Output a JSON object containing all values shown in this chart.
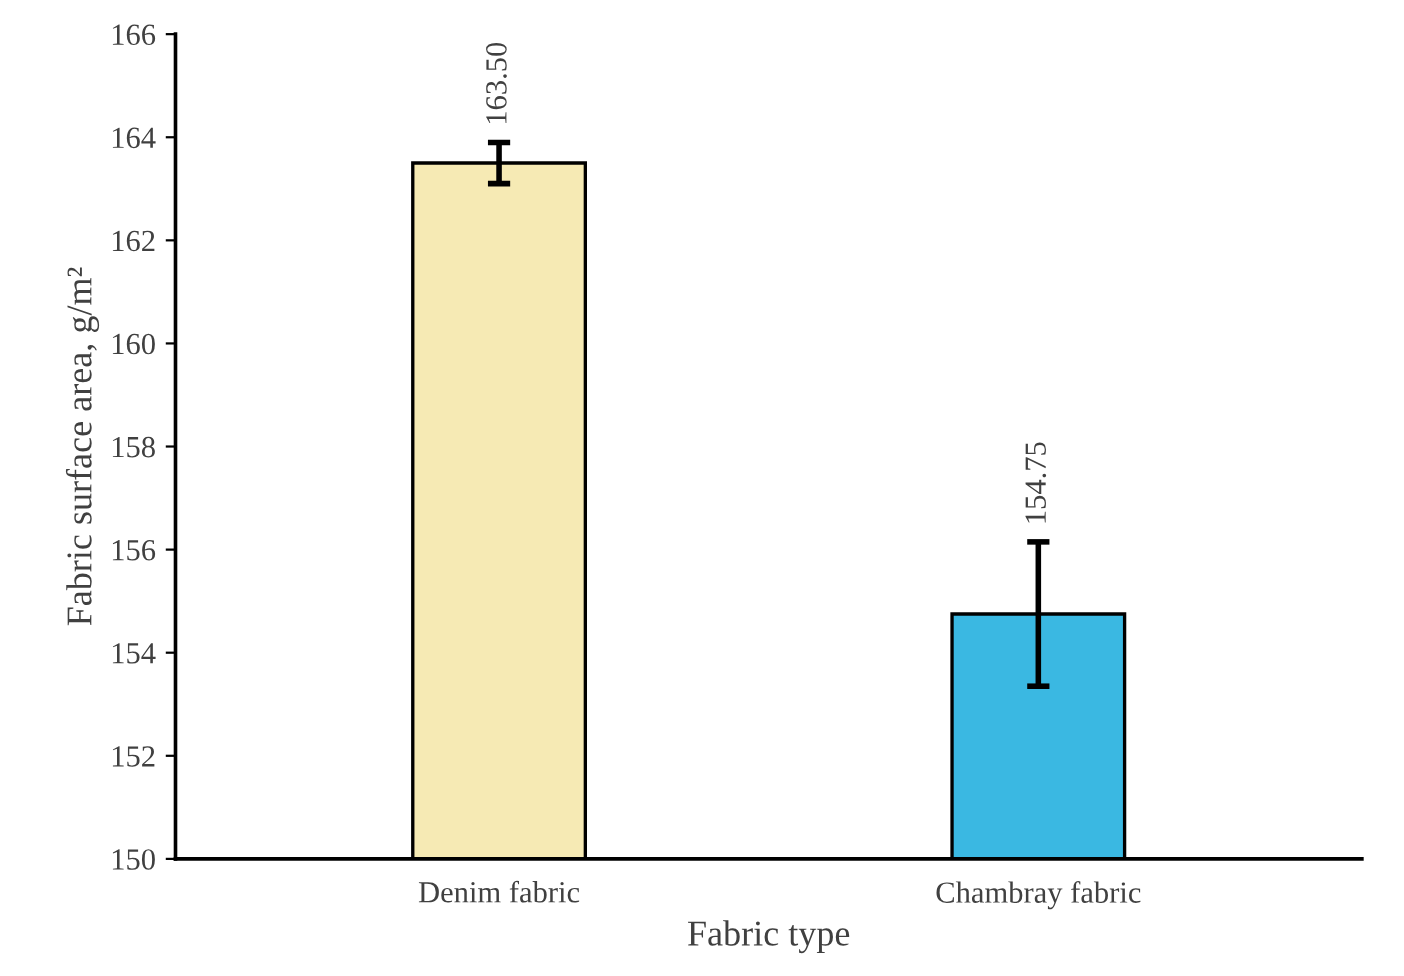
{
  "chart_data": {
    "type": "bar",
    "xlabel": "Fabric type",
    "ylabel": "Fabric surface area, g/m²",
    "categories": [
      "Denim fabric",
      "Chambray fabric"
    ],
    "values": [
      163.5,
      154.75
    ],
    "colors": [
      "#f6eab4",
      "#3ab8e2"
    ],
    "errors": [
      0.4,
      1.4
    ],
    "value_labels": [
      "163.50",
      "154.75"
    ],
    "ylim": [
      150,
      166
    ],
    "yticks": [
      150,
      152,
      154,
      156,
      158,
      160,
      162,
      164,
      166
    ],
    "grid": false
  }
}
